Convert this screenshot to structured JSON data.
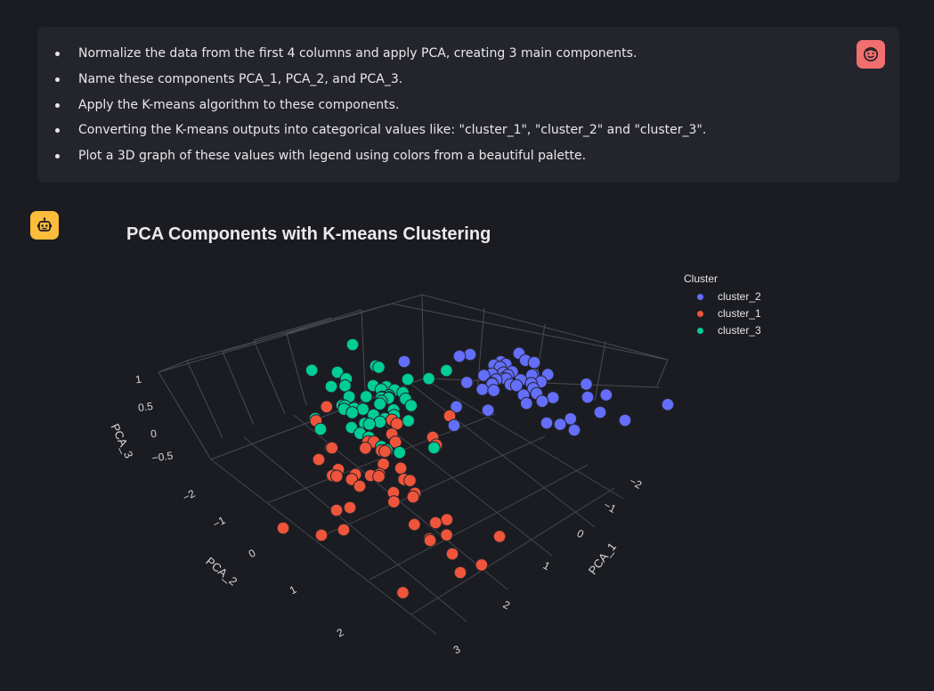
{
  "user_message": {
    "bullets": [
      "Normalize the data from the first 4 columns and apply PCA, creating 3 main components.",
      "Name these components PCA_1, PCA_2, and PCA_3.",
      "Apply the K-means algorithm to these components.",
      "Converting the K-means outputs into categorical values like: \"cluster_1\", \"cluster_2\" and \"cluster_3\".",
      "Plot a 3D graph of these values with legend using colors from a beautiful palette."
    ],
    "avatar_icon": "smiling-face-icon"
  },
  "assistant": {
    "avatar_icon": "robot-icon"
  },
  "chart_data": {
    "type": "scatter3d",
    "title": "PCA Components with K-means Clustering",
    "legend_title": "Cluster",
    "legend_position": "top-right",
    "axes": {
      "x": {
        "label": "PCA_1",
        "ticks": [
          "−2",
          "−1",
          "0",
          "1",
          "2"
        ]
      },
      "y": {
        "label": "PCA_2",
        "ticks": [
          "−2",
          "−1",
          "0",
          "1",
          "2",
          "3"
        ]
      },
      "z": {
        "label": "PCA_3",
        "ticks": [
          "−0.5",
          "0",
          "0.5",
          "1"
        ]
      }
    },
    "grid": true,
    "series": [
      {
        "name": "cluster_2",
        "color": "#636efa",
        "count": 50
      },
      {
        "name": "cluster_1",
        "color": "#ef553b",
        "count": 50
      },
      {
        "name": "cluster_3",
        "color": "#00cc96",
        "count": 50
      }
    ]
  }
}
